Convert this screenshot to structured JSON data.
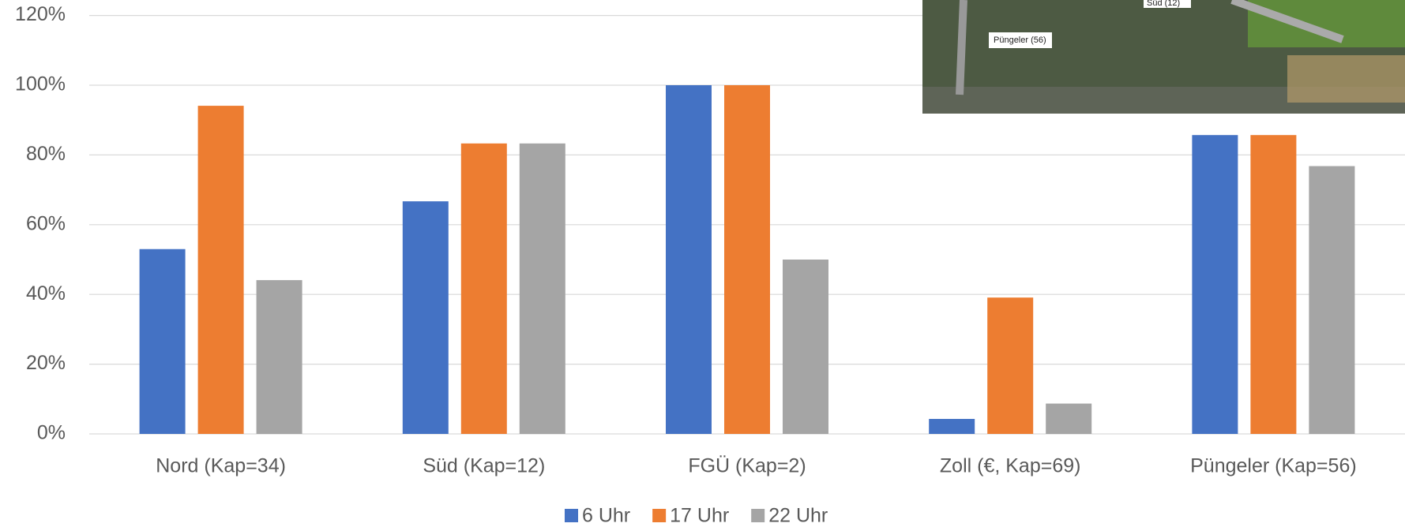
{
  "chart_data": {
    "type": "bar",
    "categories": [
      "Nord (Kap=34)",
      "Süd (Kap=12)",
      "FGÜ (Kap=2)",
      "Zoll (€, Kap=69)",
      "Püngeler (Kap=56)"
    ],
    "series": [
      {
        "name": "6 Uhr",
        "color": "#4472c4",
        "values": [
          53,
          66.7,
          100,
          4.3,
          85.7
        ]
      },
      {
        "name": "17 Uhr",
        "color": "#ed7d31",
        "values": [
          94.1,
          83.3,
          100,
          39.1,
          85.7
        ]
      },
      {
        "name": "22 Uhr",
        "color": "#a5a5a5",
        "values": [
          44.1,
          83.3,
          50,
          8.7,
          76.8
        ]
      }
    ],
    "ylim": [
      0,
      120
    ],
    "yticks": [
      {
        "value": 0,
        "label": "0%"
      },
      {
        "value": 20,
        "label": "20%"
      },
      {
        "value": 40,
        "label": "40%"
      },
      {
        "value": 60,
        "label": "60%"
      },
      {
        "value": 80,
        "label": "80%"
      },
      {
        "value": 100,
        "label": "100%"
      },
      {
        "value": 120,
        "label": "120%"
      }
    ],
    "grid": true,
    "legend": "bottom"
  },
  "inset": {
    "labels": [
      "Süd (12)",
      "Püngeler (56)"
    ]
  }
}
